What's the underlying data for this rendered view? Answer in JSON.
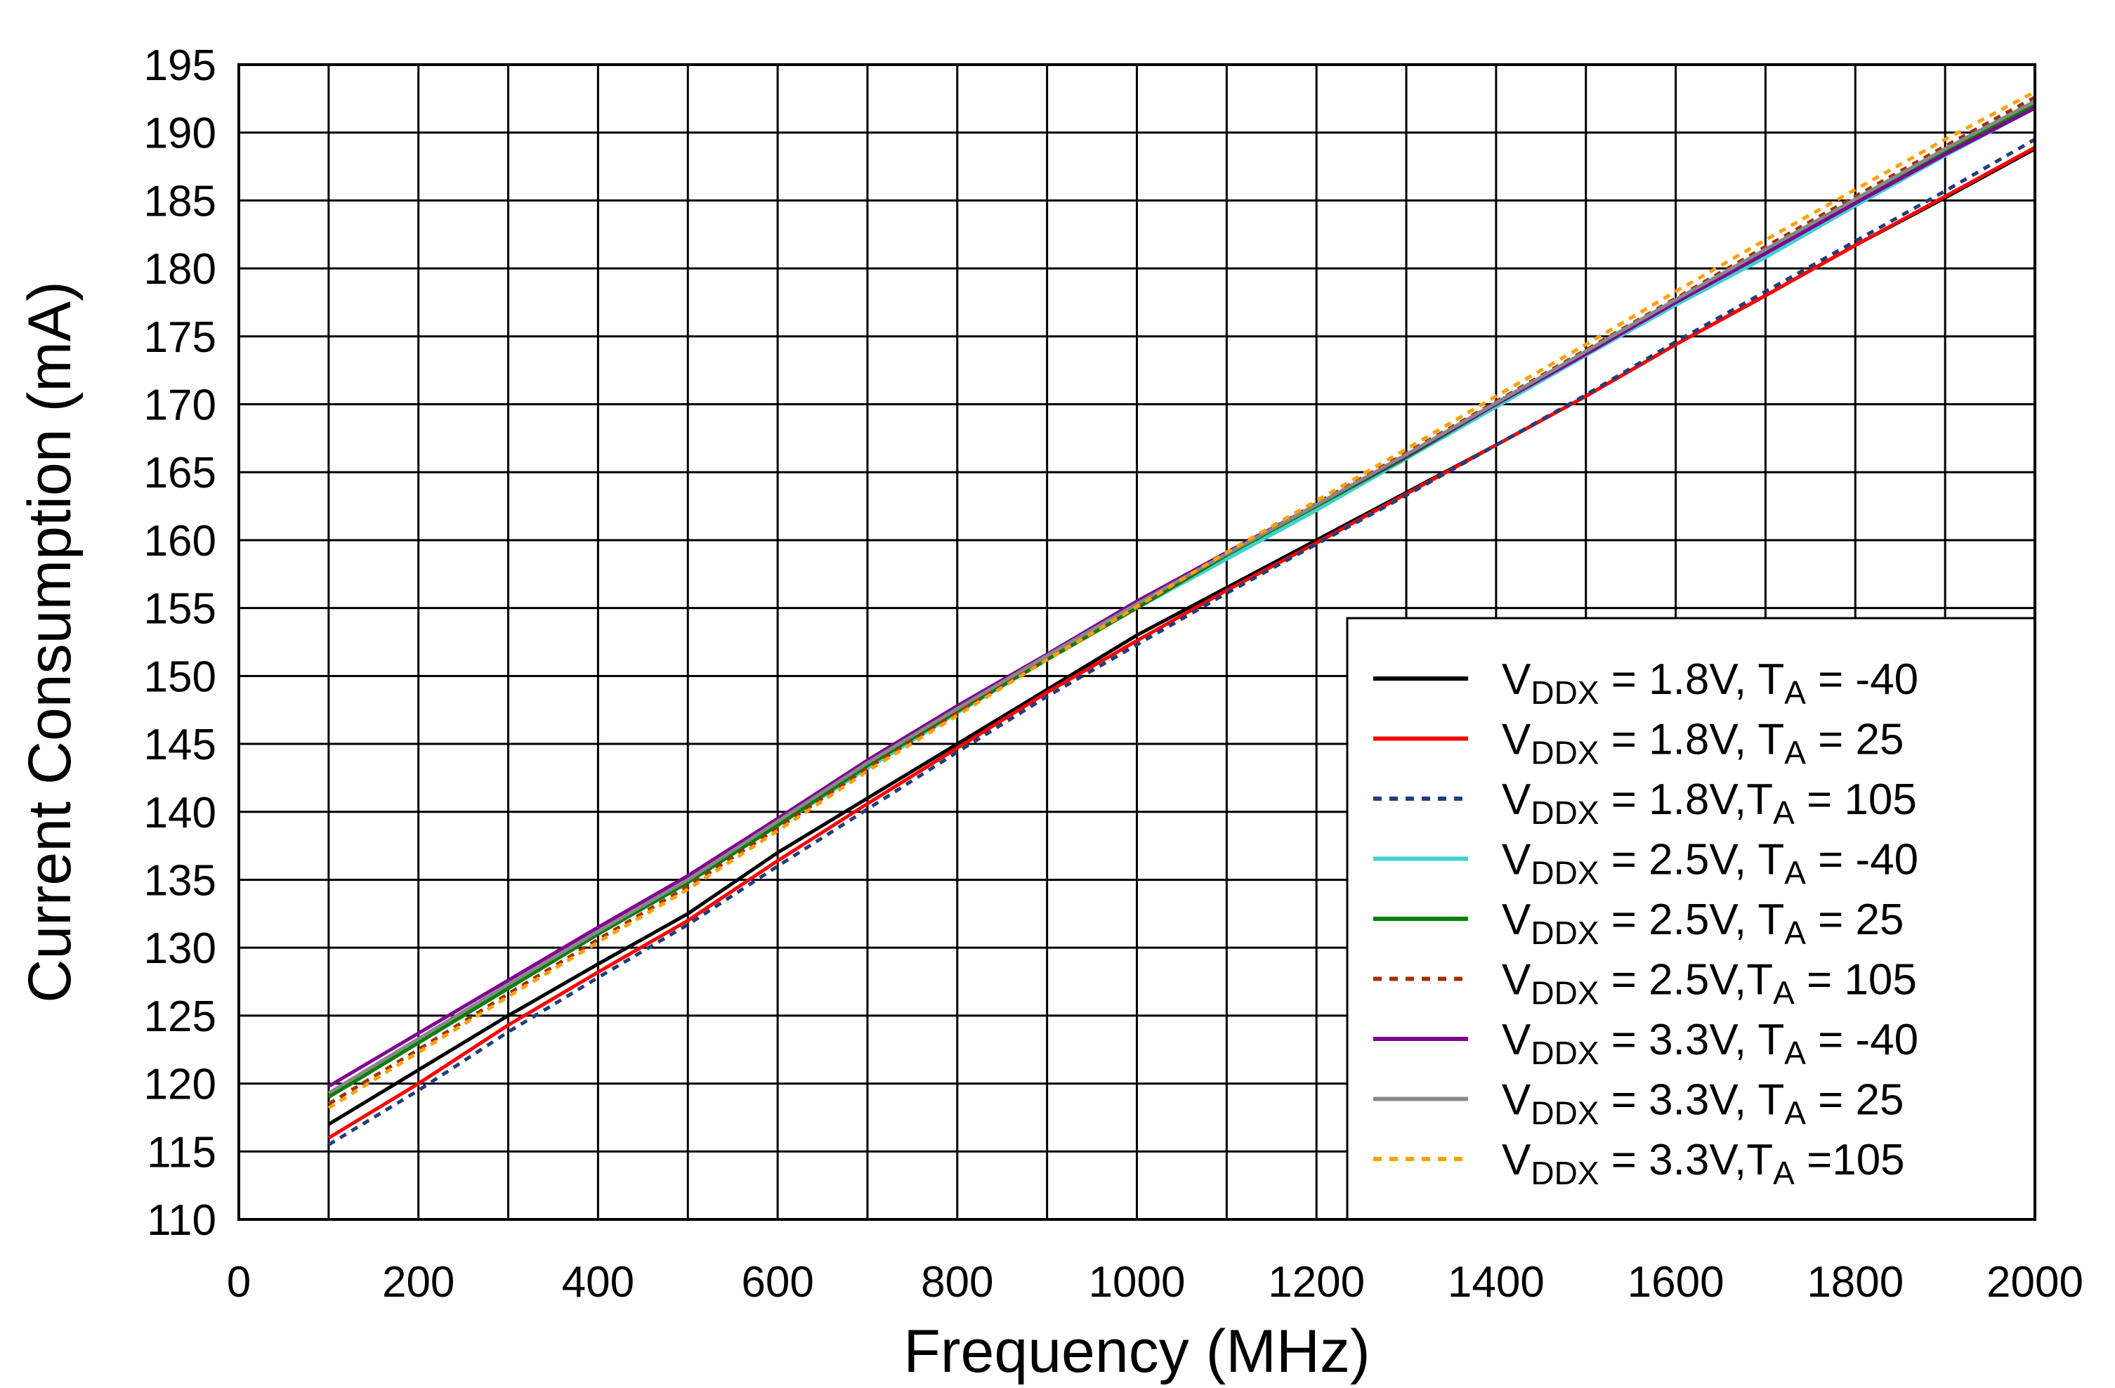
{
  "chart_data": {
    "type": "line",
    "title": "",
    "xlabel": "Frequency (MHz)",
    "ylabel": "Current Consumption (mA)",
    "xlim": [
      0,
      2000
    ],
    "ylim": [
      110,
      195
    ],
    "xticks": [
      0,
      200,
      400,
      600,
      800,
      1000,
      1200,
      1400,
      1600,
      1800,
      2000
    ],
    "xtick_labels": [
      "0",
      "200",
      "400",
      "600",
      "800",
      "1000",
      "1200",
      "1400",
      "1600",
      "1800",
      "2000"
    ],
    "yticks": [
      110,
      115,
      120,
      125,
      130,
      135,
      140,
      145,
      150,
      155,
      160,
      165,
      170,
      175,
      180,
      185,
      190,
      195
    ],
    "ytick_labels": [
      "110",
      "115",
      "120",
      "125",
      "130",
      "135",
      "140",
      "145",
      "150",
      "155",
      "160",
      "165",
      "170",
      "175",
      "180",
      "185",
      "190",
      "195"
    ],
    "grid": true,
    "legend_position": "bottom-right",
    "x": [
      100,
      200,
      300,
      400,
      500,
      600,
      700,
      800,
      900,
      1000,
      1100,
      1200,
      1300,
      1400,
      1500,
      1600,
      1700,
      1800,
      1900,
      2000
    ],
    "series": [
      {
        "label": {
          "v": "V",
          "sub1": "DDX",
          "mid": " = 1.8V, T",
          "sub2": "A",
          "end": " = -40"
        },
        "color": "#000000",
        "dash": "solid",
        "values": [
          117.0,
          121.0,
          125.0,
          128.8,
          132.5,
          137.0,
          141.0,
          145.0,
          149.0,
          153.0,
          156.5,
          160.0,
          163.5,
          167.0,
          170.6,
          174.4,
          178.0,
          181.7,
          185.2,
          188.8
        ]
      },
      {
        "label": {
          "v": "V",
          "sub1": "DDX",
          "mid": " = 1.8V, T",
          "sub2": "A",
          "end": " = 25"
        },
        "color": "#ff0000",
        "dash": "solid",
        "values": [
          116.0,
          120.0,
          124.3,
          128.2,
          132.0,
          136.4,
          140.6,
          144.7,
          148.8,
          152.6,
          156.3,
          159.8,
          163.4,
          167.0,
          170.6,
          174.4,
          178.0,
          181.7,
          185.3,
          188.9
        ]
      },
      {
        "label": {
          "v": "V",
          "sub1": "DDX",
          "mid": " = 1.8V,T",
          "sub2": "A",
          "end": " = 105"
        },
        "color": "#1f3f7a",
        "dash": "dotted",
        "values": [
          115.5,
          119.5,
          123.8,
          127.8,
          131.7,
          136.0,
          140.2,
          144.4,
          148.5,
          152.3,
          156.1,
          159.7,
          163.3,
          167.0,
          170.7,
          174.6,
          178.3,
          182.0,
          185.7,
          189.5
        ]
      },
      {
        "label": {
          "v": "V",
          "sub1": "DDX",
          "mid": " = 2.5V, T",
          "sub2": "A",
          "end": " = -40"
        },
        "color": "#40d0d0",
        "dash": "solid",
        "values": [
          119.0,
          123.0,
          127.0,
          131.0,
          134.8,
          139.0,
          143.2,
          147.3,
          151.2,
          155.0,
          158.6,
          162.2,
          166.0,
          169.8,
          173.6,
          177.3,
          180.8,
          184.6,
          188.3,
          191.8
        ]
      },
      {
        "label": {
          "v": "V",
          "sub1": "DDX",
          "mid": " = 2.5V, T",
          "sub2": "A",
          "end": " = 25"
        },
        "color": "#008000",
        "dash": "solid",
        "values": [
          119.0,
          123.0,
          127.0,
          131.0,
          134.8,
          139.0,
          143.4,
          147.4,
          151.2,
          155.0,
          158.9,
          162.5,
          166.1,
          170.0,
          173.8,
          177.6,
          181.3,
          185.0,
          188.6,
          192.0
        ]
      },
      {
        "label": {
          "v": "V",
          "sub1": "DDX",
          "mid": " = 2.5V,T",
          "sub2": "A",
          "end": " = 105"
        },
        "color": "#a0300a",
        "dash": "dotted",
        "values": [
          118.5,
          122.5,
          126.6,
          130.6,
          134.5,
          138.8,
          143.2,
          147.3,
          151.3,
          155.1,
          159.0,
          162.7,
          166.4,
          170.2,
          174.0,
          177.8,
          181.6,
          185.3,
          189.0,
          192.6
        ]
      },
      {
        "label": {
          "v": "V",
          "sub1": "DDX",
          "mid": " = 3.3V, T",
          "sub2": "A",
          "end": " = -40"
        },
        "color": "#800090",
        "dash": "solid",
        "values": [
          119.8,
          123.7,
          127.6,
          131.5,
          135.3,
          139.5,
          143.8,
          147.8,
          151.6,
          155.5,
          159.1,
          162.6,
          166.2,
          170.0,
          173.7,
          177.5,
          181.1,
          184.8,
          188.4,
          191.8
        ]
      },
      {
        "label": {
          "v": "V",
          "sub1": "DDX",
          "mid": " = 3.3V, T",
          "sub2": "A",
          "end": " = 25"
        },
        "color": "#888888",
        "dash": "solid",
        "values": [
          119.3,
          123.3,
          127.3,
          131.2,
          135.0,
          139.3,
          143.6,
          147.6,
          151.5,
          155.3,
          159.0,
          162.6,
          166.3,
          170.1,
          173.9,
          177.7,
          181.4,
          185.1,
          188.8,
          192.3
        ]
      },
      {
        "label": {
          "v": "V",
          "sub1": "DDX",
          "mid": " = 3.3V,T",
          "sub2": "A",
          "end": " =105"
        },
        "color": "#ffa000",
        "dash": "dotted",
        "values": [
          118.2,
          122.3,
          126.4,
          130.4,
          134.3,
          138.6,
          143.0,
          147.1,
          151.2,
          155.1,
          159.1,
          162.9,
          166.7,
          170.6,
          174.4,
          178.3,
          182.1,
          185.8,
          189.5,
          193.0
        ]
      }
    ]
  }
}
